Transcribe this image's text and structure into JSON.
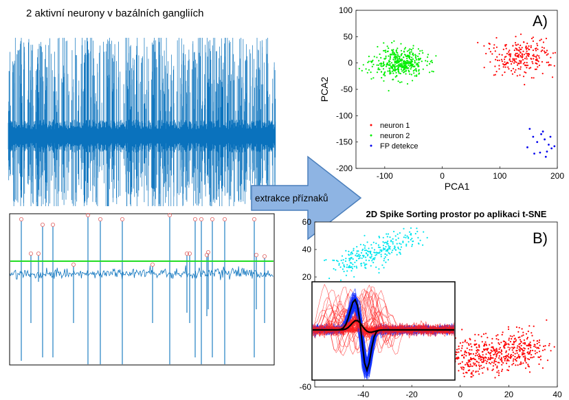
{
  "figure": {
    "top_left_title": "2 aktivní neurony v bazálních gangliích",
    "arrow_label": "extrakce příznaků",
    "raw_trace_color": "#0a72bd",
    "threshold_color": "#22dd22",
    "marker_color": "#e06060"
  },
  "chart_data": [
    {
      "type": "scatter",
      "panel_label": "A)",
      "title": "",
      "xlabel": "PCA1",
      "ylabel": "PCA2",
      "xlim": [
        -150,
        200
      ],
      "ylim": [
        -200,
        100
      ],
      "xticks": [
        "-100",
        "0",
        "100",
        "200"
      ],
      "xtick_values": [
        -100,
        0,
        100,
        200
      ],
      "yticks": [
        "100",
        "50",
        "0",
        "-50",
        "-100",
        "-150",
        "-200"
      ],
      "ytick_values": [
        100,
        50,
        0,
        -50,
        -100,
        -150,
        -200
      ],
      "legend_position": "bottom-left",
      "series": [
        {
          "name": "neuron 1",
          "color": "#ff0000",
          "clusters": [
            {
              "cx": 135,
              "cy": 10,
              "sx": 28,
              "sy": 17,
              "n": 240
            }
          ]
        },
        {
          "name": "neuron 2",
          "color": "#00ee00",
          "clusters": [
            {
              "cx": -75,
              "cy": 0,
              "sx": 22,
              "sy": 14,
              "n": 420
            }
          ]
        },
        {
          "name": "FP detekce",
          "color": "#0000ee",
          "points": [
            [
              152,
              -125
            ],
            [
              158,
              -140
            ],
            [
              165,
              -150
            ],
            [
              172,
              -135
            ],
            [
              178,
              -145
            ],
            [
              185,
              -155
            ],
            [
              190,
              -162
            ],
            [
              170,
              -170
            ],
            [
              180,
              -178
            ],
            [
              160,
              -172
            ],
            [
              148,
              -160
            ],
            [
              188,
              -140
            ],
            [
              175,
              -130
            ],
            [
              182,
              -168
            ],
            [
              195,
              -158
            ]
          ]
        }
      ]
    },
    {
      "type": "scatter",
      "panel_label": "B)",
      "title": "2D Spike Sorting prostor po aplikaci t-SNE",
      "xlabel": "",
      "ylabel": "",
      "xlim": [
        -60,
        40
      ],
      "ylim": [
        -60,
        60
      ],
      "xticks": [
        "-40",
        "-20",
        "0",
        "20",
        "40"
      ],
      "xtick_values": [
        -40,
        -20,
        0,
        20,
        40
      ],
      "yticks": [
        "60",
        "40",
        "20",
        "-60"
      ],
      "ytick_values": [
        60,
        40,
        20,
        -60
      ],
      "series": [
        {
          "color": "#00e5ee",
          "clusters": [
            {
              "type": "band",
              "x0": -50,
              "y0": 28,
              "x1": -20,
              "y1": 48,
              "spread": 5,
              "n": 260
            }
          ]
        },
        {
          "color": "#ff0000",
          "clusters": [
            {
              "type": "band",
              "x0": -3,
              "y0": -40,
              "x1": 32,
              "y1": -32,
              "spread": 7,
              "n": 520
            }
          ]
        }
      ]
    }
  ]
}
